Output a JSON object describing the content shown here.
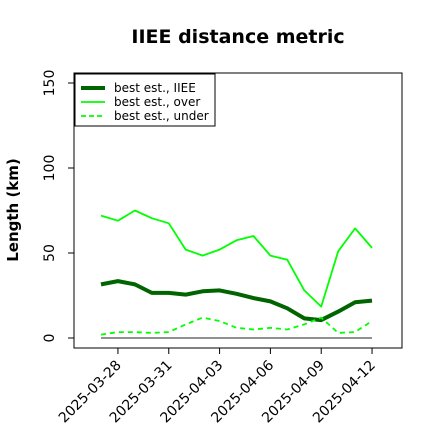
{
  "chart_data": {
    "type": "line",
    "title": "IIEE distance metric",
    "xlabel": "",
    "ylabel": "Length (km)",
    "x": [
      "2025-03-27",
      "2025-03-28",
      "2025-03-29",
      "2025-03-30",
      "2025-03-31",
      "2025-04-01",
      "2025-04-02",
      "2025-04-03",
      "2025-04-04",
      "2025-04-05",
      "2025-04-06",
      "2025-04-07",
      "2025-04-08",
      "2025-04-09",
      "2025-04-10",
      "2025-04-11",
      "2025-04-12"
    ],
    "x_ticks": [
      "2025-03-28",
      "2025-03-31",
      "2025-04-03",
      "2025-04-06",
      "2025-04-09",
      "2025-04-12"
    ],
    "y_ticks": [
      0,
      50,
      100,
      150
    ],
    "ylim": [
      -5,
      158
    ],
    "series": [
      {
        "name": "best est., IIEE",
        "color": "#006400",
        "style": "solid",
        "width": "thick",
        "values": [
          31.5,
          33.5,
          31.5,
          26.5,
          26.5,
          25.5,
          27.5,
          28.0,
          26.0,
          23.5,
          21.5,
          17.5,
          11.5,
          10.5,
          15.5,
          21.0,
          22.0
        ]
      },
      {
        "name": "best est., over",
        "color": "#00ff00",
        "style": "solid",
        "width": "thin",
        "values": [
          72.0,
          69.0,
          75.0,
          70.5,
          67.5,
          52.0,
          48.5,
          52.0,
          57.5,
          60.0,
          48.5,
          46.0,
          28.0,
          18.5,
          51.0,
          64.5,
          53.0
        ]
      },
      {
        "name": "best est., under",
        "color": "#00ff00",
        "style": "dashed",
        "width": "thin",
        "values": [
          2.0,
          3.5,
          3.5,
          3.0,
          3.5,
          8.0,
          12.0,
          10.0,
          6.0,
          5.0,
          6.0,
          5.0,
          8.0,
          12.0,
          3.0,
          3.5,
          10.0
        ]
      },
      {
        "name": "",
        "color": "#808080",
        "style": "solid",
        "width": "thin",
        "values": [
          0,
          0,
          0,
          0,
          0,
          0,
          0,
          0,
          0,
          0,
          0,
          0,
          0,
          0,
          0,
          0,
          0
        ]
      }
    ],
    "legend_position": "top-left",
    "grid": false
  }
}
